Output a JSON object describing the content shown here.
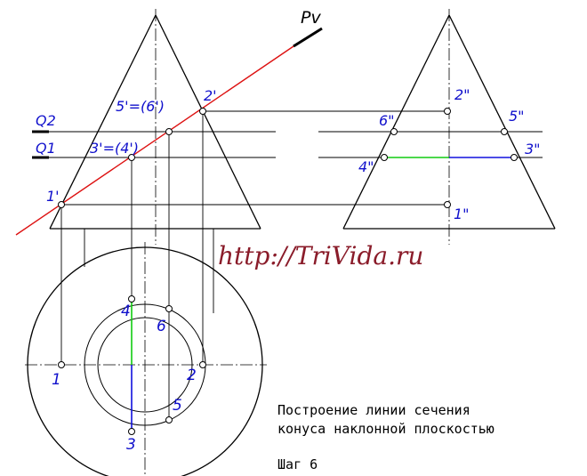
{
  "labels": {
    "pv": "Pv",
    "q2": "Q2",
    "q1": "Q1",
    "front_1": "1'",
    "front_2": "2'",
    "front_34": "3'=(4')",
    "front_56": "5'=(6')",
    "side_2": "2\"",
    "side_6": "6\"",
    "side_5": "5\"",
    "side_4": "4\"",
    "side_3": "3\"",
    "side_1": "1\"",
    "top_1": "1",
    "top_2": "2",
    "top_3": "3",
    "top_4": "4",
    "top_5": "5",
    "top_6": "6"
  },
  "watermark": "http://TriVida.ru",
  "caption": {
    "line1": "Построение линии сечения",
    "line2": "конуса наклонной плоскостью",
    "step": "Шаг 6"
  },
  "colors": {
    "plane": "#dd1111",
    "labels": "#1010cc",
    "green_segment": "#11cc11",
    "blue_segment": "#1111dd",
    "watermark": "#8a1c2a"
  }
}
